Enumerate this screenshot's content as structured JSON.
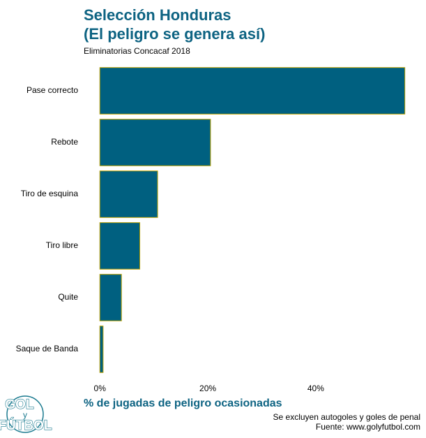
{
  "chart_data": {
    "type": "bar",
    "orientation": "horizontal",
    "title": [
      "Selección Honduras",
      "(El peligro se genera así)"
    ],
    "subtitle": "Eliminatorias Concacaf 2018",
    "x_label": "% de jugadas de peligro ocasionadas",
    "caption": [
      "Se excluyen autogoles y goles de penal",
      "Fuente: www.golyfutbol.com"
    ],
    "logo": [
      "GOL",
      "y",
      "FÚTBOL"
    ],
    "categories": [
      "Pase correcto",
      "Rebote",
      "Tiro de esquina",
      "Tiro libre",
      "Quite",
      "Saque de Banda"
    ],
    "values": [
      56.5,
      20.5,
      10.7,
      7.4,
      4.0,
      0.6
    ],
    "color": "#006080",
    "edge_color": "#b8a000",
    "xlim": [
      -3,
      59
    ],
    "xticks": [
      {
        "value": 0,
        "label": "0%"
      },
      {
        "value": 20,
        "label": "20%"
      },
      {
        "value": 40,
        "label": "40%"
      }
    ],
    "grid": false
  }
}
